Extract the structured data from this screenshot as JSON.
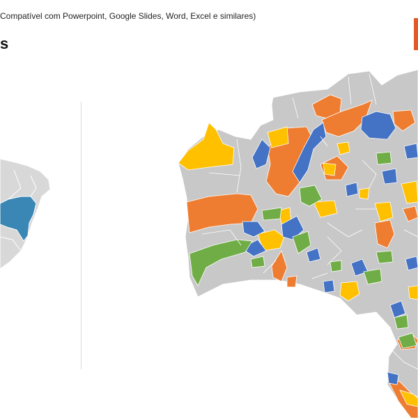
{
  "header": {
    "subtitle": "Compatível com Powerpoint, Google Slides, Word, Excel e similares)",
    "title": "s"
  },
  "colors": {
    "accent": "#E35A2A",
    "base_region": "#C8C8C8",
    "highlight_state": "#3A86B4",
    "orange": "#EE7D31",
    "yellow": "#FFC000",
    "blue": "#4472C4",
    "green": "#70AD47",
    "border": "#ffffff"
  },
  "overview_map": {
    "country": "Brasil",
    "highlighted_state": "Bahia",
    "icons": [
      "brazil-map-icon"
    ]
  },
  "detail_map": {
    "state": "Bahia",
    "fill_palette": [
      "orange",
      "yellow",
      "blue",
      "green",
      "gray"
    ]
  }
}
